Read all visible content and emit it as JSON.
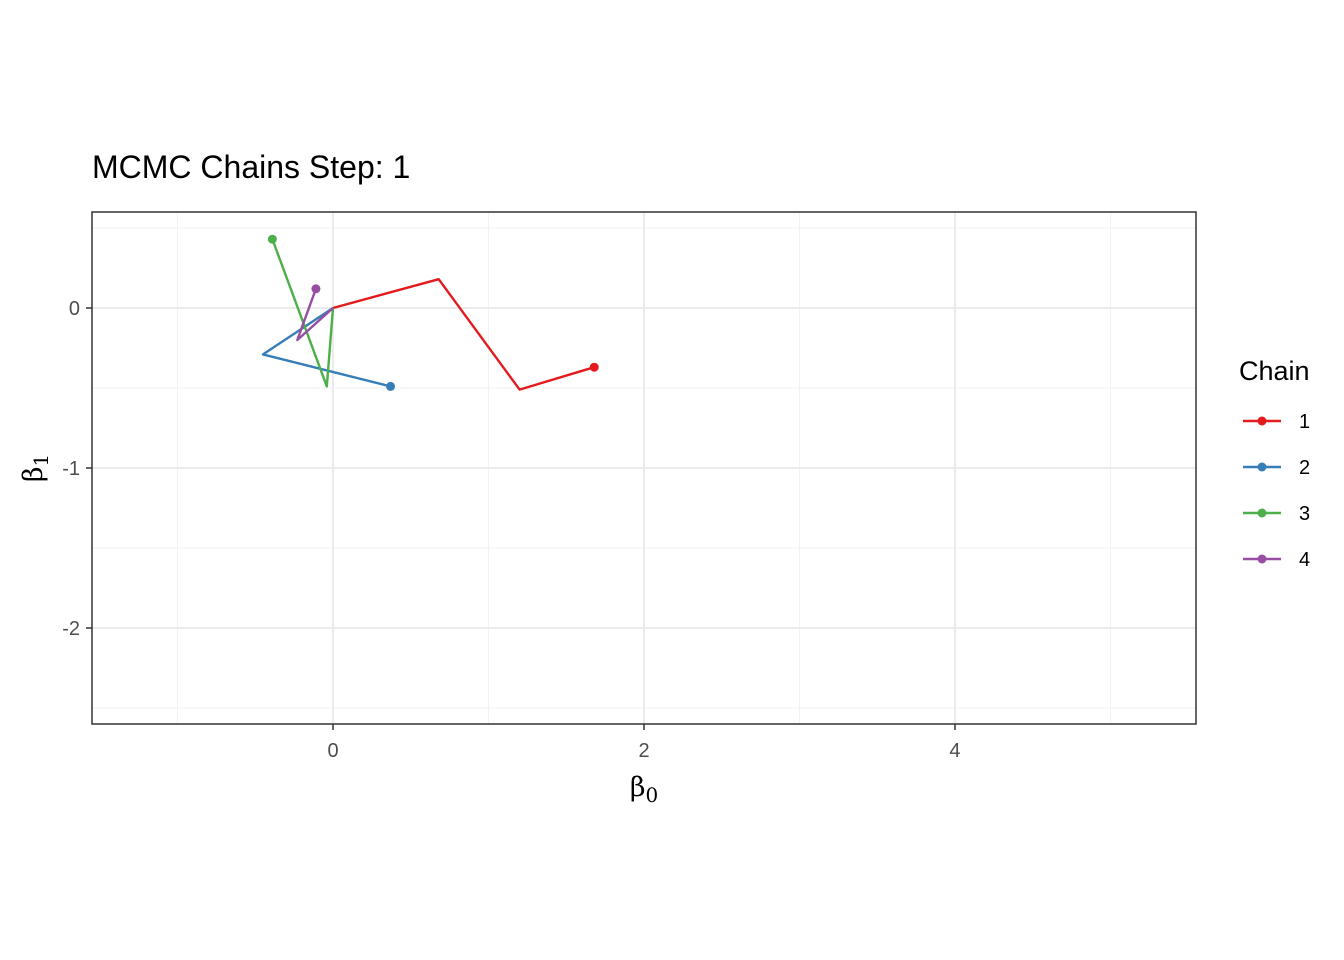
{
  "chart_data": {
    "type": "line",
    "title": "MCMC Chains Step: 1",
    "xlabel": {
      "symbol": "β",
      "subscript": "0"
    },
    "ylabel": {
      "symbol": "β",
      "subscript": "1"
    },
    "xlim": [
      -1.55,
      5.55
    ],
    "ylim": [
      -2.6,
      0.6
    ],
    "x_ticks": [
      0,
      2,
      4
    ],
    "x_tick_labels": [
      "0",
      "2",
      "4"
    ],
    "x_minor_ticks": [
      -1,
      1,
      3,
      5
    ],
    "y_ticks": [
      0,
      -1,
      -2
    ],
    "y_tick_labels": [
      "0",
      "-1",
      "-2"
    ],
    "y_minor_ticks": [
      0.5,
      -0.5,
      -1.5,
      -2.5
    ],
    "grid": true,
    "legend": {
      "title": "Chain",
      "position": "right"
    },
    "series": [
      {
        "name": "1",
        "color": "#e41a1c",
        "x": [
          0,
          0.68,
          1.2,
          1.68
        ],
        "y": [
          0,
          0.18,
          -0.51,
          -0.37
        ]
      },
      {
        "name": "2",
        "color": "#377eb8",
        "x": [
          0,
          -0.45,
          0.37
        ],
        "y": [
          0,
          -0.29,
          -0.49
        ]
      },
      {
        "name": "3",
        "color": "#4daf4a",
        "x": [
          0,
          -0.04,
          -0.39
        ],
        "y": [
          0,
          -0.49,
          0.43
        ]
      },
      {
        "name": "4",
        "color": "#984ea3",
        "x": [
          0,
          -0.23,
          -0.11
        ],
        "y": [
          0,
          -0.2,
          0.12
        ]
      }
    ]
  }
}
